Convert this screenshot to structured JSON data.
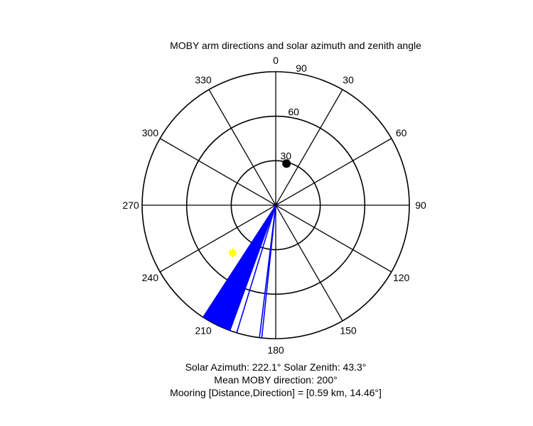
{
  "chart_data": {
    "type": "polar",
    "title": "MOBY arm directions and solar azimuth and zenith angle",
    "azimuth_ticks": [
      "0",
      "30",
      "60",
      "90",
      "120",
      "150",
      "180",
      "210",
      "240",
      "270",
      "300",
      "330"
    ],
    "azimuth_tick_values": [
      0,
      30,
      60,
      90,
      120,
      150,
      180,
      210,
      240,
      270,
      300,
      330
    ],
    "zenith_rings": [
      30,
      60,
      90
    ],
    "zenith_ring_labels": [
      "30",
      "60",
      "90"
    ],
    "zenith_max": 90,
    "orientation": "clockwise-from-top",
    "arm_direction_fan": {
      "color": "#0000ff",
      "from_azimuth": 200,
      "to_azimuth": 213,
      "zenith_extent": 90,
      "sparse_lines_azimuths": [
        186,
        187,
        197
      ]
    },
    "sun_marker": {
      "azimuth": 222.1,
      "zenith": 43.3,
      "color": "#ffff00",
      "shape": "star"
    },
    "mooring_marker": {
      "azimuth": 14.46,
      "zenith": 29,
      "color": "#000000",
      "shape": "dot"
    }
  },
  "captions": {
    "line1": "Solar Azimuth: 222.1° Solar Zenith: 43.3°",
    "line2": "Mean MOBY direction: 200°",
    "line3": "Mooring [Distance,Direction] = [0.59 km, 14.46°]"
  }
}
